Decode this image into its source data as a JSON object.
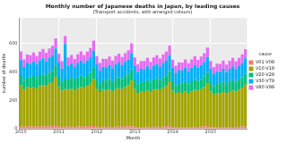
{
  "chart_data": {
    "type": "bar",
    "title": "Monthly number of Japanese deaths in Japan, by leading causes",
    "subtitle": "(Transport accidents, with arranged colours)",
    "x_label": "Month",
    "y_label": "number of deaths",
    "legend_title": "cause",
    "legend": "right",
    "stacked": true,
    "grid": true,
    "categories": [
      "2010",
      null,
      null,
      null,
      null,
      null,
      null,
      null,
      null,
      null,
      null,
      null,
      "2011",
      null,
      null,
      null,
      null,
      null,
      null,
      null,
      null,
      null,
      null,
      null,
      "2012",
      null,
      null,
      null,
      null,
      null,
      null,
      null,
      null,
      null,
      null,
      null,
      "2013",
      null,
      null,
      null,
      null,
      null,
      null,
      null,
      null,
      null,
      null,
      null,
      "2014",
      null,
      null,
      null,
      null,
      null,
      null,
      null,
      null,
      null,
      null,
      null,
      "2015",
      null,
      null,
      null,
      null,
      null,
      null,
      null,
      null,
      null,
      null,
      null
    ],
    "ylim": [
      0,
      780
    ],
    "yticks": [
      0,
      200,
      400,
      600
    ],
    "series": [
      {
        "name": "V01-V09",
        "color": "#F8766D",
        "values": [
          16,
          14,
          15,
          15,
          16,
          14,
          15,
          16,
          15,
          17,
          18,
          20,
          15,
          13,
          14,
          14,
          15,
          13,
          15,
          15,
          14,
          16,
          17,
          19,
          14,
          13,
          14,
          13,
          14,
          13,
          14,
          15,
          14,
          15,
          16,
          18,
          14,
          12,
          13,
          13,
          14,
          12,
          14,
          14,
          13,
          15,
          16,
          17,
          13,
          12,
          13,
          12,
          13,
          12,
          13,
          14,
          13,
          14,
          15,
          17,
          13,
          11,
          12,
          12,
          13,
          12,
          13,
          13,
          12,
          14,
          15,
          16
        ]
      },
      {
        "name": "V10-V19",
        "color": "#A3A500",
        "values": [
          290,
          260,
          280,
          270,
          275,
          270,
          285,
          290,
          285,
          300,
          310,
          340,
          280,
          255,
          265,
          260,
          265,
          255,
          270,
          280,
          275,
          285,
          300,
          330,
          270,
          245,
          260,
          255,
          260,
          250,
          265,
          270,
          265,
          280,
          290,
          320,
          265,
          240,
          250,
          245,
          255,
          245,
          260,
          265,
          260,
          275,
          285,
          310,
          255,
          235,
          245,
          240,
          250,
          240,
          250,
          260,
          255,
          265,
          280,
          300,
          250,
          230,
          240,
          235,
          245,
          235,
          245,
          255,
          250,
          260,
          275,
          295
        ]
      },
      {
        "name": "V20-V29",
        "color": "#00BF7D",
        "values": [
          72,
          65,
          70,
          75,
          80,
          74,
          78,
          82,
          76,
          79,
          80,
          85,
          70,
          64,
          68,
          73,
          78,
          72,
          76,
          80,
          74,
          77,
          79,
          83,
          69,
          62,
          67,
          71,
          76,
          70,
          74,
          78,
          72,
          75,
          77,
          81,
          67,
          61,
          65,
          70,
          75,
          69,
          72,
          76,
          70,
          74,
          76,
          80,
          66,
          60,
          64,
          68,
          73,
          67,
          71,
          75,
          69,
          72,
          74,
          78,
          65,
          59,
          63,
          67,
          72,
          66,
          70,
          74,
          68,
          71,
          73,
          77
        ]
      },
      {
        "name": "V30-V79",
        "color": "#00B0F6",
        "values": [
          105,
          95,
          100,
          98,
          102,
          96,
          104,
          108,
          100,
          106,
          110,
          120,
          102,
          92,
          250,
          96,
          100,
          94,
          102,
          106,
          98,
          104,
          108,
          118,
          100,
          90,
          96,
          94,
          98,
          92,
          100,
          104,
          96,
          102,
          106,
          115,
          98,
          88,
          94,
          92,
          96,
          90,
          98,
          102,
          94,
          100,
          104,
          112,
          96,
          86,
          92,
          90,
          94,
          88,
          96,
          100,
          92,
          98,
          102,
          110,
          94,
          85,
          90,
          88,
          92,
          86,
          94,
          98,
          90,
          96,
          100,
          108
        ]
      },
      {
        "name": "V80-V99",
        "color": "#E76BF3",
        "values": [
          62,
          55,
          58,
          60,
          64,
          58,
          62,
          66,
          60,
          64,
          66,
          72,
          60,
          54,
          57,
          59,
          62,
          57,
          61,
          64,
          59,
          62,
          65,
          70,
          59,
          53,
          56,
          58,
          61,
          56,
          60,
          63,
          58,
          61,
          64,
          68,
          58,
          52,
          55,
          57,
          60,
          55,
          59,
          62,
          57,
          60,
          63,
          67,
          57,
          51,
          54,
          56,
          59,
          54,
          58,
          61,
          56,
          59,
          62,
          66,
          56,
          50,
          53,
          55,
          58,
          53,
          57,
          60,
          55,
          58,
          61,
          65
        ]
      }
    ]
  }
}
